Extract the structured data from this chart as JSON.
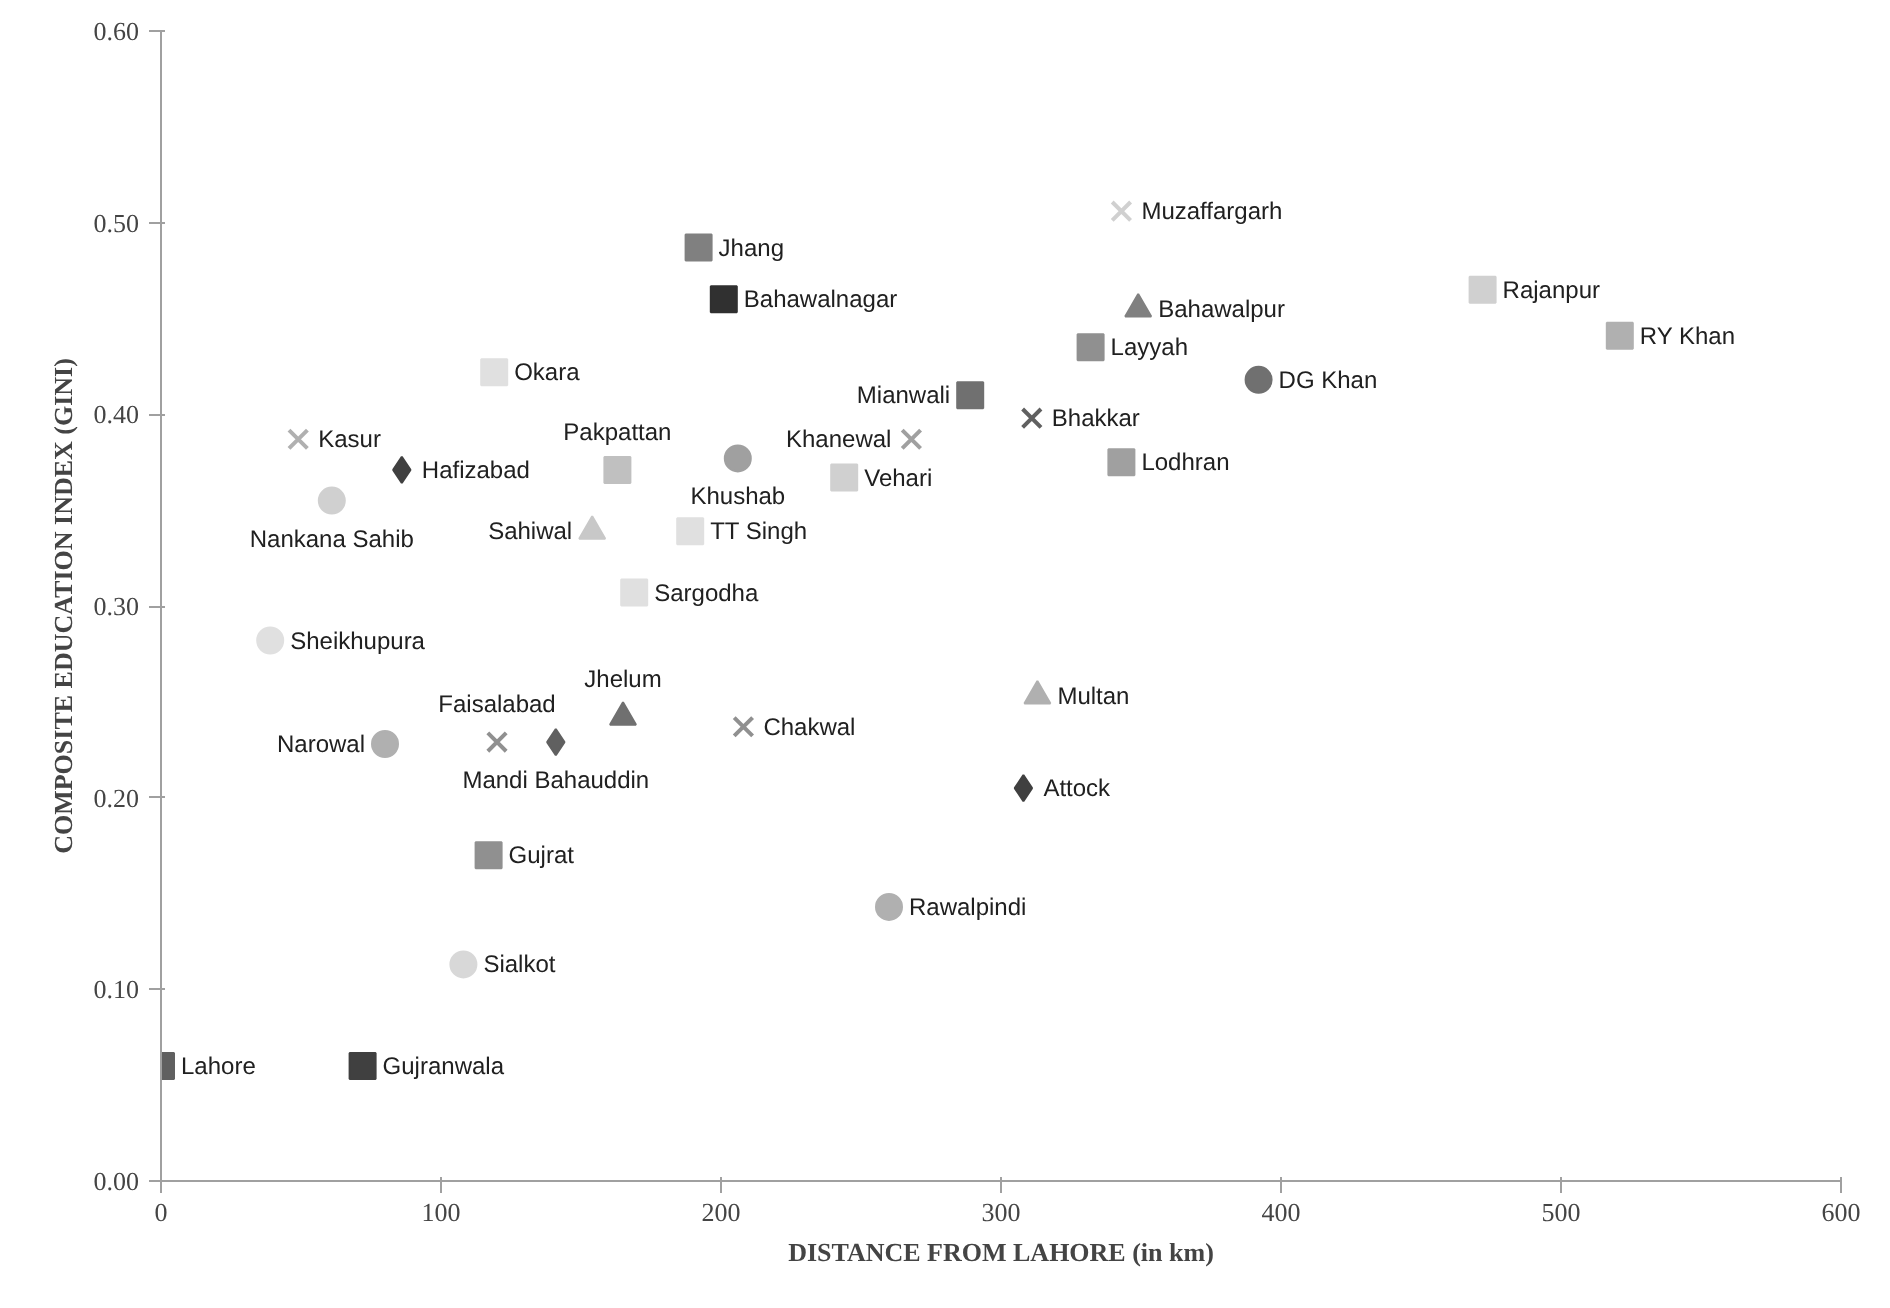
{
  "chart_data": {
    "type": "scatter",
    "xlabel": "DISTANCE FROM LAHORE (in km)",
    "ylabel": "COMPOSITE EDUCATION INDEX (GINI)",
    "xlim": [
      0,
      600
    ],
    "xticks": [
      0,
      100,
      200,
      300,
      400,
      500,
      600
    ],
    "ylim": [
      0,
      0.6
    ],
    "yticks": [
      {
        "value": 0,
        "label": "0.00"
      },
      {
        "value": 0.1,
        "label": "0.10"
      },
      {
        "value": 0.2,
        "label": "0.20"
      },
      {
        "value": 0.3,
        "label": "0.30"
      },
      {
        "value": 0.4,
        "label": "0.40"
      },
      {
        "value": 0.5,
        "label": "0.50"
      },
      {
        "value": 0.6,
        "label": "0.60"
      }
    ],
    "grid": false,
    "series": [
      {
        "marker": "diamond",
        "x": [
          86,
          141,
          308
        ],
        "values": [
          0.371,
          0.229,
          0.205
        ],
        "colors": [
          "#404040",
          "#606060",
          "#404040"
        ]
      },
      {
        "marker": "square",
        "x": [
          192,
          201,
          289,
          521
        ],
        "values": [
          0.487,
          0.46,
          0.41,
          0.441
        ],
        "colors": [
          "#808080",
          "#303030",
          "#707070",
          "#b0b0b0"
        ]
      },
      {
        "marker": "triangle",
        "x": [
          165,
          313,
          349,
          154
        ],
        "values": [
          0.242,
          0.253,
          0.455,
          0.339
        ],
        "colors": [
          "#707070",
          "#b0b0b0",
          "#808080",
          "#c8c8c8"
        ]
      },
      {
        "marker": "circle",
        "x": [
          80,
          206,
          392,
          260,
          108,
          39,
          61
        ],
        "values": [
          0.228,
          0.377,
          0.418,
          0.143,
          0.113,
          0.282,
          0.355
        ],
        "colors": [
          "#b0b0b0",
          "#a0a0a0",
          "#707070",
          "#b0b0b0",
          "#d8d8d8",
          "#e0e0e0",
          "#d0d0d0"
        ]
      },
      {
        "marker": "cross",
        "x": [
          49,
          311,
          343,
          120,
          208,
          268
        ],
        "values": [
          0.387,
          0.398,
          0.506,
          0.229,
          0.237,
          0.387
        ],
        "colors": [
          "#b0b0b0",
          "#606060",
          "#d0d0d0",
          "#909090",
          "#909090",
          "#a0a0a0"
        ]
      },
      {
        "marker": "square",
        "x": [
          0,
          72,
          117,
          332,
          343,
          163,
          472,
          119,
          244,
          189,
          169
        ],
        "values": [
          0.06,
          0.06,
          0.17,
          0.435,
          0.375,
          0.371,
          0.465,
          0.422,
          0.367,
          0.339,
          0.307
        ],
        "colors": [
          "#606060",
          "#404040",
          "#909090",
          "#909090",
          "#a0a0a0",
          "#c0c0c0",
          "#d0d0d0",
          "#e0e0e0",
          "#d0d0d0",
          "#e0e0e0",
          "#e0e0e0"
        ]
      }
    ],
    "annotations": [
      {
        "text": "Hafizabad",
        "x": 86,
        "y": 0.371
      },
      {
        "text": "Mandi Bahauddin",
        "x": 141,
        "y": 0.229
      },
      {
        "text": "Attock",
        "x": 308,
        "y": 0.205
      },
      {
        "text": "Jhang",
        "x": 192,
        "y": 0.487
      },
      {
        "text": "Bahawalnagar",
        "x": 201,
        "y": 0.46
      },
      {
        "text": "Mianwali",
        "x": 289,
        "y": 0.41
      },
      {
        "text": "RY Khan",
        "x": 521,
        "y": 0.441
      },
      {
        "text": "Jhelum",
        "x": 165,
        "y": 0.242
      },
      {
        "text": "Multan",
        "x": 313,
        "y": 0.253
      },
      {
        "text": "Bahawalpur",
        "x": 349,
        "y": 0.455
      },
      {
        "text": "Sahiwal",
        "x": 154,
        "y": 0.339
      },
      {
        "text": "Narowal",
        "x": 80,
        "y": 0.228
      },
      {
        "text": "Khushab",
        "x": 206,
        "y": 0.377
      },
      {
        "text": "DG Khan",
        "x": 392,
        "y": 0.418
      },
      {
        "text": "Rawalpindi",
        "x": 260,
        "y": 0.143
      },
      {
        "text": "Sialkot",
        "x": 108,
        "y": 0.113
      },
      {
        "text": "Sheikhupura",
        "x": 39,
        "y": 0.282
      },
      {
        "text": "Nankana Sahib",
        "x": 61,
        "y": 0.355
      },
      {
        "text": "Kasur",
        "x": 49,
        "y": 0.387
      },
      {
        "text": "Bhakkar",
        "x": 311,
        "y": 0.398
      },
      {
        "text": "Muzaffargarh",
        "x": 343,
        "y": 0.506
      },
      {
        "text": "Faisalabad",
        "x": 120,
        "y": 0.229
      },
      {
        "text": "Chakwal",
        "x": 208,
        "y": 0.237
      },
      {
        "text": "Khanewal",
        "x": 268,
        "y": 0.387
      },
      {
        "text": "Lahore",
        "x": 0,
        "y": 0.06
      },
      {
        "text": "Gujranwala",
        "x": 72,
        "y": 0.06
      },
      {
        "text": "Gujrat",
        "x": 117,
        "y": 0.17
      },
      {
        "text": "Layyah",
        "x": 332,
        "y": 0.435
      },
      {
        "text": "Lodhran",
        "x": 343,
        "y": 0.375
      },
      {
        "text": "Pakpattan",
        "x": 163,
        "y": 0.371
      },
      {
        "text": "Rajanpur",
        "x": 472,
        "y": 0.465
      },
      {
        "text": "Okara",
        "x": 119,
        "y": 0.422
      },
      {
        "text": "Vehari",
        "x": 244,
        "y": 0.367
      },
      {
        "text": "TT Singh",
        "x": 189,
        "y": 0.339
      },
      {
        "text": "Sargodha",
        "x": 169,
        "y": 0.307
      }
    ]
  }
}
